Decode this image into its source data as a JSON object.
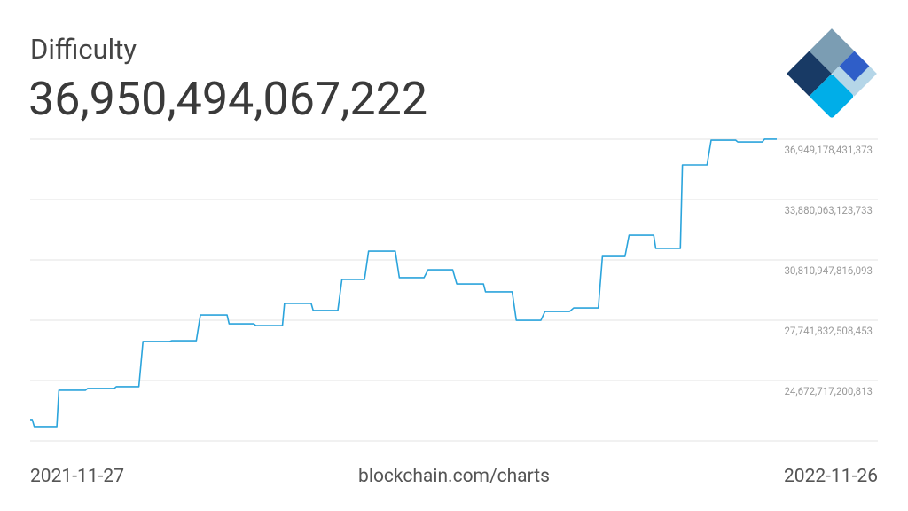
{
  "chart_data": {
    "type": "line",
    "title": "Difficulty",
    "latest_label": "36,950,494,067,222",
    "source": "blockchain.com/charts",
    "xlim": [
      "2021-11-27",
      "2022-11-26"
    ],
    "ylim": [
      21603601893173,
      36949178431373
    ],
    "yticks": [
      {
        "value": 24672717200813,
        "label": "24,672,717,200,813"
      },
      {
        "value": 27741832508453,
        "label": "27,741,832,508,453"
      },
      {
        "value": 30810947816093,
        "label": "30,810,947,816,093"
      },
      {
        "value": 33880063123733,
        "label": "33,880,063,123,733"
      },
      {
        "value": 36949178431373,
        "label": "36,949,178,431,373"
      }
    ],
    "grid": true,
    "series": [
      {
        "color": "#2ba4dc",
        "x": [
          "2021-11-27",
          "2021-11-28",
          "2021-11-29",
          "2021-12-10",
          "2021-12-11",
          "2021-12-24",
          "2021-12-25",
          "2022-01-07",
          "2022-01-08",
          "2022-01-19",
          "2022-01-21",
          "2022-02-03",
          "2022-02-04",
          "2022-02-16",
          "2022-02-18",
          "2022-03-03",
          "2022-03-04",
          "2022-03-16",
          "2022-03-17",
          "2022-03-30",
          "2022-03-31",
          "2022-04-13",
          "2022-04-14",
          "2022-04-26",
          "2022-04-28",
          "2022-05-09",
          "2022-05-11",
          "2022-05-24",
          "2022-05-26",
          "2022-06-07",
          "2022-06-09",
          "2022-06-21",
          "2022-06-23",
          "2022-07-06",
          "2022-07-07",
          "2022-07-20",
          "2022-07-22",
          "2022-08-03",
          "2022-08-05",
          "2022-08-17",
          "2022-08-19",
          "2022-08-31",
          "2022-09-02",
          "2022-09-13",
          "2022-09-15",
          "2022-09-27",
          "2022-09-28",
          "2022-10-10",
          "2022-10-11",
          "2022-10-23",
          "2022-10-25",
          "2022-11-06",
          "2022-11-07",
          "2022-11-19",
          "2022-11-20",
          "2022-11-26"
        ],
        "values": [
          22690000000000,
          22690000000000,
          22330000000000,
          22330000000000,
          24180000000000,
          24180000000000,
          24270000000000,
          24270000000000,
          24360000000000,
          24360000000000,
          26660000000000,
          26660000000000,
          26700000000000,
          26700000000000,
          28010000000000,
          28010000000000,
          27560000000000,
          27560000000000,
          27470000000000,
          27470000000000,
          28600000000000,
          28600000000000,
          28240000000000,
          28240000000000,
          29820000000000,
          29820000000000,
          31260000000000,
          31260000000000,
          29910000000000,
          29910000000000,
          30310000000000,
          30310000000000,
          29590000000000,
          29590000000000,
          29190000000000,
          29190000000000,
          27740000000000,
          27740000000000,
          28190000000000,
          28190000000000,
          28370000000000,
          28370000000000,
          30990000000000,
          30990000000000,
          32070000000000,
          32070000000000,
          31400000000000,
          31400000000000,
          35640000000000,
          35640000000000,
          36900000000000,
          36900000000000,
          36810000000000,
          36810000000000,
          36950494067222,
          36950494067222
        ]
      }
    ]
  }
}
